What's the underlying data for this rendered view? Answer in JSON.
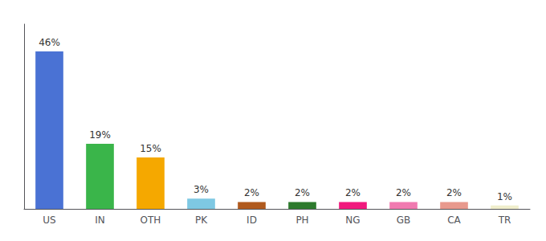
{
  "chart_data": {
    "type": "bar",
    "categories": [
      "US",
      "IN",
      "OTH",
      "PK",
      "ID",
      "PH",
      "NG",
      "GB",
      "CA",
      "TR"
    ],
    "values": [
      46,
      19,
      15,
      3,
      2,
      2,
      2,
      2,
      2,
      1
    ],
    "value_labels": [
      "46%",
      "19%",
      "15%",
      "3%",
      "2%",
      "2%",
      "2%",
      "2%",
      "2%",
      "1%"
    ],
    "colors": [
      "#4a72d4",
      "#3ab54a",
      "#f5a800",
      "#7ec8e3",
      "#b05a1e",
      "#2d7a2d",
      "#f0197d",
      "#f07ab0",
      "#e8998d",
      "#f0eecc"
    ],
    "ylim": [
      0,
      54
    ],
    "data_labels": true,
    "tick_labels": "x",
    "grid": false
  }
}
